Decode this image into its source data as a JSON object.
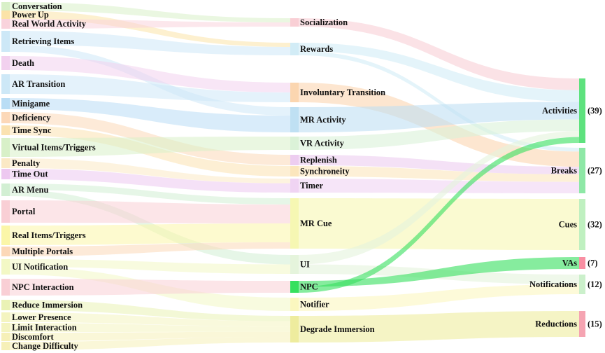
{
  "nodes": {
    "left": [
      {
        "id": "conversation",
        "label": "Conversation",
        "color": "#d8f0c8"
      },
      {
        "id": "power_up",
        "label": "Power Up",
        "color": "#fbe3a8"
      },
      {
        "id": "real_world_activity",
        "label": "Real World Activity",
        "color": "#f9d3dc"
      },
      {
        "id": "retrieving_items",
        "label": "Retrieving Items",
        "color": "#cde8f7"
      },
      {
        "id": "death",
        "label": "Death",
        "color": "#f2d1ef"
      },
      {
        "id": "ar_transition",
        "label": "AR Transition",
        "color": "#cde8f7"
      },
      {
        "id": "minigame",
        "label": "Minigame",
        "color": "#b9ddf5"
      },
      {
        "id": "deficiency",
        "label": "Deficiency",
        "color": "#fcd8b8"
      },
      {
        "id": "time_sync",
        "label": "Time Sync",
        "color": "#fbe2b0"
      },
      {
        "id": "virtual_items_triggers",
        "label": "Virtual Items/Triggers",
        "color": "#d8f0c8"
      },
      {
        "id": "penalty",
        "label": "Penalty",
        "color": "#fbe9c5"
      },
      {
        "id": "time_out",
        "label": "Time Out",
        "color": "#edc8f0"
      },
      {
        "id": "ar_menu",
        "label": "AR Menu",
        "color": "#d2efd3"
      },
      {
        "id": "portal",
        "label": "Portal",
        "color": "#f9cfd5"
      },
      {
        "id": "real_items_triggers",
        "label": "Real Items/Triggers",
        "color": "#fbf6a8"
      },
      {
        "id": "multiple_portals",
        "label": "Multiple Portals",
        "color": "#fcd8b8"
      },
      {
        "id": "ui_notification",
        "label": "UI Notification",
        "color": "#f3f8c5"
      },
      {
        "id": "npc_interaction",
        "label": "NPC Interaction",
        "color": "#f9cfd5"
      },
      {
        "id": "reduce_immersion",
        "label": "Reduce Immersion",
        "color": "#eaf2b5"
      },
      {
        "id": "lower_presence",
        "label": "Lower Presence",
        "color": "#f4f4c0"
      },
      {
        "id": "limit_interaction",
        "label": "Limit Interaction",
        "color": "#f4f4c0"
      },
      {
        "id": "discomfort",
        "label": "Discomfort",
        "color": "#f6f0b8"
      },
      {
        "id": "change_difficulty",
        "label": "Change Difficulty",
        "color": "#f6f0b8"
      }
    ],
    "middle": [
      {
        "id": "socialization",
        "label": "Socialization",
        "color": "#f9cfd5"
      },
      {
        "id": "rewards",
        "label": "Rewards",
        "color": "#d2ecf6"
      },
      {
        "id": "involuntary_transition",
        "label": "Involuntary Transition",
        "color": "#fbd6b0"
      },
      {
        "id": "mr_activity",
        "label": "MR Activity",
        "color": "#bfe0f3"
      },
      {
        "id": "vr_activity",
        "label": "VR Activity",
        "color": "#dbf2d8"
      },
      {
        "id": "replenish",
        "label": "Replenish",
        "color": "#edcdf0"
      },
      {
        "id": "synchroneity",
        "label": "Synchroneity",
        "color": "#fbe6bd"
      },
      {
        "id": "timer",
        "label": "Timer",
        "color": "#f0d4f3"
      },
      {
        "id": "mr_cue",
        "label": "MR Cue",
        "color": "#f6f7b3"
      },
      {
        "id": "ui",
        "label": "UI",
        "color": "#e5f4dc"
      },
      {
        "id": "npc",
        "label": "NPC",
        "color": "#36e05e"
      },
      {
        "id": "notifier",
        "label": "Notifier",
        "color": "#fbf7bf"
      },
      {
        "id": "degrade_immersion",
        "label": "Degrade Immersion",
        "color": "#eeec9e"
      }
    ],
    "right": [
      {
        "id": "activities",
        "label": "Activities",
        "count": "(39)",
        "color": "#5ee27e"
      },
      {
        "id": "breaks",
        "label": "Breaks",
        "count": "(27)",
        "color": "#8ee8a6"
      },
      {
        "id": "cues",
        "label": "Cues",
        "count": "(32)",
        "color": "#bff0c0"
      },
      {
        "id": "vas",
        "label": "VAs",
        "count": "(7)",
        "color": "#f98fa3"
      },
      {
        "id": "notifications",
        "label": "Notifications",
        "count": "(12)",
        "color": "#cbf0cb"
      },
      {
        "id": "reductions",
        "label": "Reductions",
        "count": "(15)",
        "color": "#f5a4b2"
      }
    ]
  },
  "links": [
    {
      "source": "conversation",
      "target": "socialization",
      "value": 1
    },
    {
      "source": "power_up",
      "target": "rewards",
      "value": 1
    },
    {
      "source": "real_world_activity",
      "target": "socialization",
      "value": 1
    },
    {
      "source": "retrieving_items",
      "target": "rewards",
      "value": 2
    },
    {
      "source": "retrieving_items",
      "target": "mr_activity",
      "value": 1
    },
    {
      "source": "death",
      "target": "involuntary_transition",
      "value": 2
    },
    {
      "source": "ar_transition",
      "target": "involuntary_transition",
      "value": 2
    },
    {
      "source": "minigame",
      "target": "mr_activity",
      "value": 2
    },
    {
      "source": "deficiency",
      "target": "replenish",
      "value": 2
    },
    {
      "source": "time_sync",
      "target": "synchroneity",
      "value": 2
    },
    {
      "source": "virtual_items_triggers",
      "target": "vr_activity",
      "value": 2
    },
    {
      "source": "penalty",
      "target": "timer",
      "value": 1
    },
    {
      "source": "time_out",
      "target": "timer",
      "value": 2
    },
    {
      "source": "ar_menu",
      "target": "mr_cue",
      "value": 1
    },
    {
      "source": "ar_menu",
      "target": "ui",
      "value": 1
    },
    {
      "source": "portal",
      "target": "mr_cue",
      "value": 3
    },
    {
      "source": "real_items_triggers",
      "target": "mr_cue",
      "value": 3
    },
    {
      "source": "multiple_portals",
      "target": "mr_cue",
      "value": 1
    },
    {
      "source": "ui_notification",
      "target": "ui",
      "value": 1
    },
    {
      "source": "ui_notification",
      "target": "notifier",
      "value": 1
    },
    {
      "source": "npc_interaction",
      "target": "npc",
      "value": 2
    },
    {
      "source": "reduce_immersion",
      "target": "degrade_immersion",
      "value": 1
    },
    {
      "source": "lower_presence",
      "target": "degrade_immersion",
      "value": 1
    },
    {
      "source": "limit_interaction",
      "target": "degrade_immersion",
      "value": 1
    },
    {
      "source": "discomfort",
      "target": "degrade_immersion",
      "value": 1
    },
    {
      "source": "change_difficulty",
      "target": "degrade_immersion",
      "value": 1
    },
    {
      "source": "socialization",
      "target": "activities",
      "value": 2
    },
    {
      "source": "rewards",
      "target": "activities",
      "value": 2
    },
    {
      "source": "rewards",
      "target": "breaks",
      "value": 1
    },
    {
      "source": "involuntary_transition",
      "target": "breaks",
      "value": 4
    },
    {
      "source": "mr_activity",
      "target": "activities",
      "value": 3
    },
    {
      "source": "vr_activity",
      "target": "activities",
      "value": 2
    },
    {
      "source": "replenish",
      "target": "breaks",
      "value": 2
    },
    {
      "source": "synchroneity",
      "target": "breaks",
      "value": 2
    },
    {
      "source": "timer",
      "target": "breaks",
      "value": 3
    },
    {
      "source": "mr_cue",
      "target": "cues",
      "value": 8
    },
    {
      "source": "ui",
      "target": "activities",
      "value": 1
    },
    {
      "source": "ui",
      "target": "notifications",
      "value": 1
    },
    {
      "source": "npc",
      "target": "vas",
      "value": 1
    },
    {
      "source": "npc",
      "target": "activities",
      "value": 1
    },
    {
      "source": "notifier",
      "target": "notifications",
      "value": 1
    },
    {
      "source": "degrade_immersion",
      "target": "reductions",
      "value": 5
    }
  ]
}
